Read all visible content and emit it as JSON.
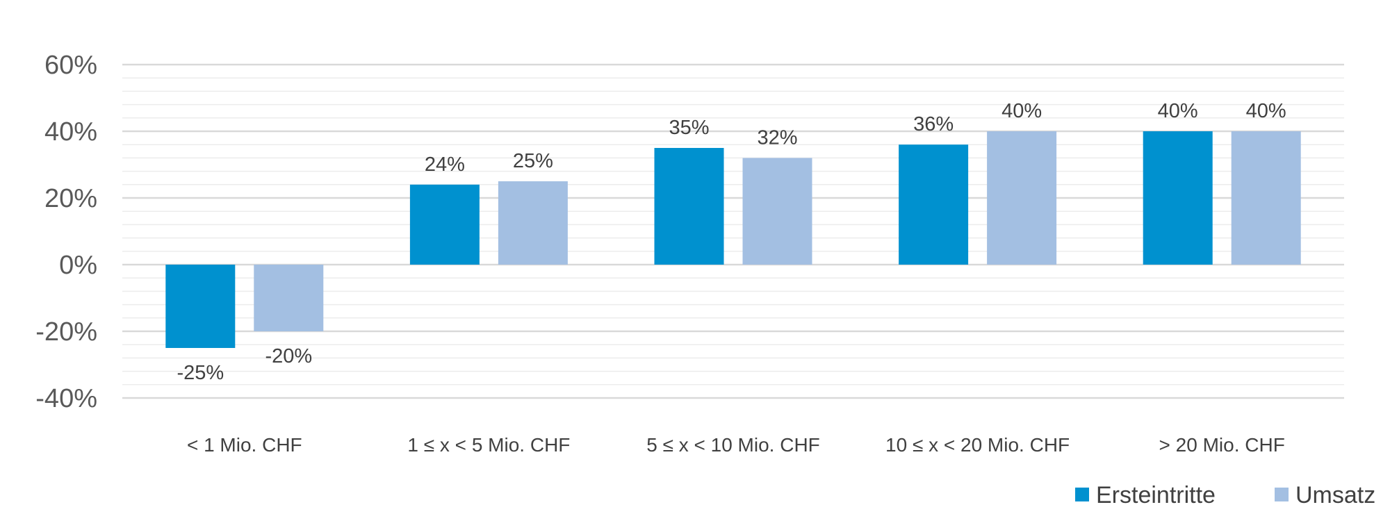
{
  "chart_data": {
    "type": "bar",
    "title": "",
    "xlabel": "",
    "ylabel": "",
    "categories": [
      "< 1 Mio. CHF",
      "1 ≤ x < 5 Mio. CHF",
      "5 ≤ x < 10 Mio. CHF",
      "10 ≤ x < 20 Mio. CHF",
      "> 20 Mio. CHF"
    ],
    "series": [
      {
        "name": "Ersteintritte",
        "values": [
          -25,
          24,
          35,
          36,
          40
        ],
        "labels": [
          "-25%",
          "24%",
          "35%",
          "36%",
          "40%"
        ],
        "color": "#0091cf"
      },
      {
        "name": "Umsatz",
        "values": [
          -20,
          25,
          32,
          40,
          40
        ],
        "labels": [
          "-20%",
          "25%",
          "32%",
          "40%",
          "40%"
        ],
        "color": "#a3bfe2"
      }
    ],
    "ylim": [
      -40,
      60
    ],
    "yticks": [
      60,
      40,
      20,
      0,
      -20,
      -40
    ],
    "ytick_labels": [
      "60%",
      "40%",
      "20%",
      "0%",
      "-20%",
      "-40%"
    ],
    "grid": "major and minor horizontal gridlines",
    "legend_position": "bottom-right"
  }
}
